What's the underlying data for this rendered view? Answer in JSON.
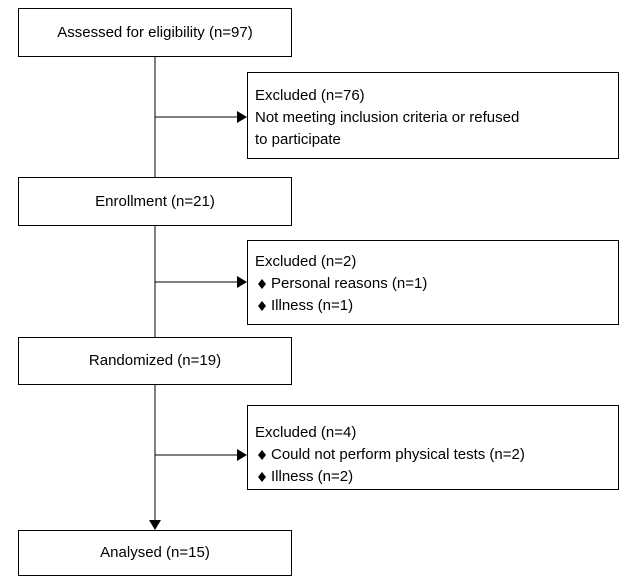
{
  "steps": [
    {
      "label": "Assessed for eligibility (n=97)"
    },
    {
      "label": "Enrollment (n=21)"
    },
    {
      "label": "Randomized (n=19)"
    },
    {
      "label": "Analysed (n=15)"
    }
  ],
  "exclusions": [
    {
      "title": "Excluded (n=76)",
      "lines": [
        "Not meeting inclusion criteria or refused",
        "to participate"
      ]
    },
    {
      "title": "Excluded (n=2)",
      "items": [
        "Personal reasons (n=1)",
        "Illness (n=1)"
      ]
    },
    {
      "title": "Excluded (n=4)",
      "items": [
        "Could not perform physical tests (n=2)",
        "Illness (n=2)"
      ]
    }
  ]
}
